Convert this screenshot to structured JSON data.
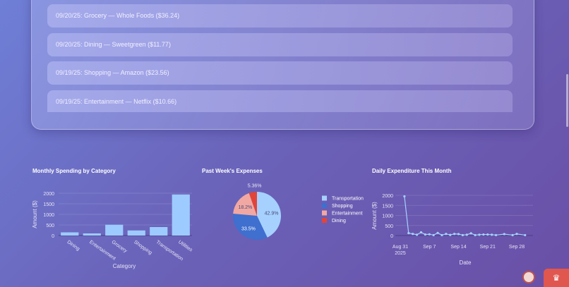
{
  "transactions": [
    "09/20/25: Grocery — Whole Foods ($36.24)",
    "09/20/25: Dining — Sweetgreen ($11.77)",
    "09/19/25: Shopping — Amazon ($23.56)",
    "09/19/25: Entertainment — Netflix ($10.66)"
  ],
  "chart_data": [
    {
      "type": "bar",
      "title": "Monthly Spending by Category",
      "xlabel": "Category",
      "ylabel": "Amount ($)",
      "categories": [
        "Dining",
        "Entertainment",
        "Grocery",
        "Shopping",
        "Transportation",
        "Utilities"
      ],
      "values": [
        150,
        100,
        510,
        240,
        400,
        1940
      ],
      "ylim": [
        0,
        2000
      ],
      "yticks": [
        "0",
        "500",
        "1000",
        "1500",
        "2000"
      ],
      "color": "#9ecbff"
    },
    {
      "type": "pie",
      "title": "Past Week's Expenses",
      "labels": [
        "Transportation",
        "Shopping",
        "Entertainment",
        "Dining"
      ],
      "values": [
        42.9,
        33.5,
        18.2,
        5.36
      ],
      "value_labels": [
        "42.9%",
        "33.5%",
        "18.2%",
        "5.36%"
      ],
      "colors": [
        "#a6d1ff",
        "#3f6fcf",
        "#f1a8a2",
        "#e0453a"
      ],
      "legend": "right"
    },
    {
      "type": "line",
      "title": "Daily Expenditure This Month",
      "xlabel": "Date",
      "ylabel": "Amount ($)",
      "x": [
        "2025-09-01",
        "2025-09-02",
        "2025-09-03",
        "2025-09-04",
        "2025-09-05",
        "2025-09-06",
        "2025-09-07",
        "2025-09-08",
        "2025-09-09",
        "2025-09-10",
        "2025-09-11",
        "2025-09-12",
        "2025-09-13",
        "2025-09-14",
        "2025-09-15",
        "2025-09-16",
        "2025-09-17",
        "2025-09-18",
        "2025-09-19",
        "2025-09-20",
        "2025-09-21",
        "2025-09-22",
        "2025-09-23",
        "2025-09-25",
        "2025-09-27",
        "2025-09-28",
        "2025-09-30"
      ],
      "y": [
        1950,
        120,
        80,
        40,
        160,
        50,
        60,
        20,
        130,
        20,
        80,
        30,
        80,
        70,
        20,
        40,
        110,
        20,
        40,
        50,
        50,
        40,
        20,
        70,
        20,
        80,
        20
      ],
      "ylim": [
        0,
        2000
      ],
      "yticks": [
        "0",
        "500",
        "1000",
        "1500",
        "2000"
      ],
      "xticks": [
        "Aug 31",
        "Sep 7",
        "Sep 14",
        "Sep 21",
        "Sep 28"
      ],
      "xtick_sub": "2025",
      "color": "#a6d1ff"
    }
  ],
  "icons": {
    "fab1": "bookmark-icon",
    "fab2": "crown-icon"
  }
}
